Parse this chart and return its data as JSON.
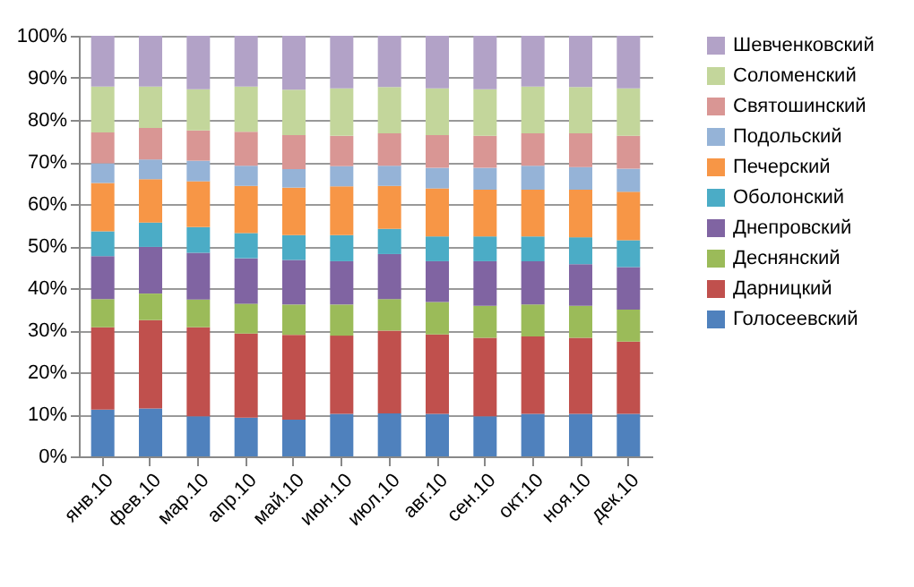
{
  "chart_data": {
    "type": "bar",
    "stacked": true,
    "legend": "right",
    "grid": "y",
    "categories": [
      "янв.10",
      "фев.10",
      "мар.10",
      "апр.10",
      "май.10",
      "июн.10",
      "июл.10",
      "авг.10",
      "сен.10",
      "окт.10",
      "ноя.10",
      "дек.10"
    ],
    "ylim": [
      0,
      100
    ],
    "yticks": [
      {
        "value": 0,
        "label": "0%"
      },
      {
        "value": 10,
        "label": "10%"
      },
      {
        "value": 20,
        "label": "20%"
      },
      {
        "value": 30,
        "label": "30%"
      },
      {
        "value": 40,
        "label": "40%"
      },
      {
        "value": 50,
        "label": "50%"
      },
      {
        "value": 60,
        "label": "60%"
      },
      {
        "value": 70,
        "label": "70%"
      },
      {
        "value": 80,
        "label": "80%"
      },
      {
        "value": 90,
        "label": "90%"
      },
      {
        "value": 100,
        "label": "100%"
      }
    ],
    "series": [
      {
        "name": "Голосеевский",
        "color": "#4f81bd",
        "values": [
          11.1,
          11.4,
          9.5,
          9.2,
          8.7,
          10.1,
          10.2,
          10.1,
          9.5,
          10.1,
          10.1,
          10.1
        ]
      },
      {
        "name": "Дарницкий",
        "color": "#c0504d",
        "values": [
          19.6,
          21.0,
          21.2,
          20.0,
          20.2,
          18.6,
          19.7,
          18.9,
          18.7,
          18.4,
          18.1,
          17.2
        ]
      },
      {
        "name": "Деснянский",
        "color": "#9bbb59",
        "values": [
          6.7,
          6.3,
          6.6,
          7.1,
          7.2,
          7.4,
          7.5,
          7.7,
          7.6,
          7.6,
          7.6,
          7.6
        ]
      },
      {
        "name": "Днепровский",
        "color": "#8064a2",
        "values": [
          10.2,
          11.1,
          11.1,
          10.8,
          10.6,
          10.3,
          10.7,
          9.7,
          10.6,
          10.3,
          9.9,
          10.1
        ]
      },
      {
        "name": "Оболонский",
        "color": "#4bacc6",
        "values": [
          5.9,
          5.8,
          6.1,
          6.0,
          5.9,
          6.2,
          6.0,
          5.9,
          5.9,
          5.9,
          6.4,
          6.4
        ]
      },
      {
        "name": "Печерский",
        "color": "#f79646",
        "values": [
          11.5,
          10.3,
          10.9,
          11.2,
          11.3,
          11.6,
          10.2,
          11.4,
          11.1,
          11.1,
          11.3,
          11.5
        ]
      },
      {
        "name": "Подольский",
        "color": "#95b3d7",
        "values": [
          4.7,
          4.7,
          4.9,
          4.8,
          4.4,
          4.8,
          4.8,
          4.9,
          5.2,
          5.7,
          5.4,
          5.5
        ]
      },
      {
        "name": "Святошинский",
        "color": "#d99694",
        "values": [
          7.3,
          7.5,
          7.2,
          8.1,
          8.1,
          7.2,
          7.7,
          7.8,
          7.6,
          7.7,
          8.0,
          7.8
        ]
      },
      {
        "name": "Соломенский",
        "color": "#c3d69b",
        "values": [
          10.9,
          9.8,
          9.8,
          10.7,
          10.8,
          11.3,
          11.0,
          11.1,
          11.1,
          11.1,
          11.0,
          11.3
        ]
      },
      {
        "name": "Шевченковский",
        "color": "#b2a2c7",
        "values": [
          12.1,
          12.1,
          12.7,
          12.1,
          12.8,
          12.5,
          12.2,
          12.5,
          12.7,
          12.1,
          12.2,
          12.5
        ]
      }
    ]
  }
}
